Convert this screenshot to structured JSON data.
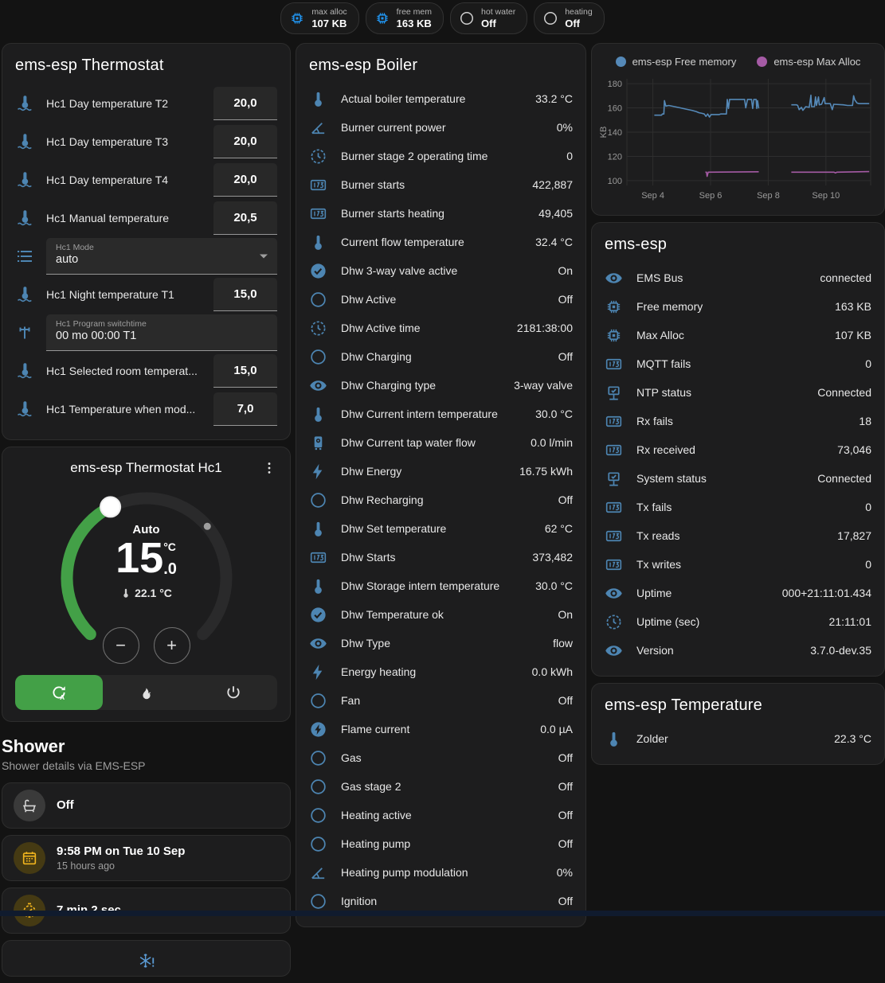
{
  "header": {
    "badges": [
      {
        "label": "max alloc",
        "value": "107 KB",
        "icon": "chip",
        "icon_color": "#2196f3"
      },
      {
        "label": "free mem",
        "value": "163 KB",
        "icon": "chip",
        "icon_color": "#2196f3"
      },
      {
        "label": "hot water",
        "value": "Off",
        "icon": "circle",
        "icon_color": "#d0d0d0"
      },
      {
        "label": "heating",
        "value": "Off",
        "icon": "circle",
        "icon_color": "#d0d0d0"
      }
    ]
  },
  "left": {
    "thermostat": {
      "title": "ems-esp Thermostat",
      "rows": [
        {
          "type": "number",
          "icon": "coolant-thermometer",
          "label": "Hc1 Day temperature T2",
          "value": "20,0"
        },
        {
          "type": "number",
          "icon": "coolant-thermometer",
          "label": "Hc1 Day temperature T3",
          "value": "20,0"
        },
        {
          "type": "number",
          "icon": "coolant-thermometer",
          "label": "Hc1 Day temperature T4",
          "value": "20,0"
        },
        {
          "type": "number",
          "icon": "coolant-thermometer",
          "label": "Hc1 Manual temperature",
          "value": "20,5"
        },
        {
          "type": "select",
          "icon": "list",
          "label": "Hc1 Mode",
          "value": "auto"
        },
        {
          "type": "number",
          "icon": "coolant-thermometer",
          "label": "Hc1 Night temperature T1",
          "value": "15,0"
        },
        {
          "type": "text",
          "icon": "pipe",
          "label": "Hc1 Program switchtime",
          "value": "00 mo 00:00 T1"
        },
        {
          "type": "number",
          "icon": "coolant-thermometer",
          "label": "Hc1 Selected room temperat...",
          "value": "15,0"
        },
        {
          "type": "number",
          "icon": "coolant-thermometer",
          "label": "Hc1 Temperature when mod...",
          "value": "7,0"
        }
      ]
    },
    "dial": {
      "title": "ems-esp Thermostat Hc1",
      "mode_label": "Auto",
      "target_int": "15",
      "target_dec": ".0",
      "target_unit": "°C",
      "target_value": 15.0,
      "current_value": 22.1,
      "current": "22.1 °C",
      "decrease_label": "−",
      "increase_label": "+",
      "accent_green": "#43a047",
      "modes": [
        {
          "icon": "auto",
          "active": true
        },
        {
          "icon": "flame",
          "active": false
        },
        {
          "icon": "power",
          "active": false
        }
      ]
    },
    "shower": {
      "title": "Shower",
      "subtitle": "Shower details via EMS-ESP",
      "cards": [
        {
          "icon": "bathtub",
          "style": "gray",
          "title": "Off",
          "subtitle": ""
        },
        {
          "icon": "calendar",
          "style": "amber",
          "title": "9:58 PM on Tue 10 Sep",
          "subtitle": "15 hours ago"
        },
        {
          "icon": "timer",
          "style": "amber",
          "title": "7 min 2 sec",
          "subtitle": ""
        },
        {
          "icon": "snowflake-alert",
          "style": "center",
          "title": "",
          "subtitle": ""
        }
      ]
    }
  },
  "boiler": {
    "title": "ems-esp Boiler",
    "rows": [
      {
        "icon": "thermometer",
        "label": "Actual boiler temperature",
        "value": "33.2 °C"
      },
      {
        "icon": "angle",
        "label": "Burner current power",
        "value": "0%"
      },
      {
        "icon": "clock",
        "label": "Burner stage 2 operating time",
        "value": "0"
      },
      {
        "icon": "counter",
        "label": "Burner starts",
        "value": "422,887"
      },
      {
        "icon": "counter",
        "label": "Burner starts heating",
        "value": "49,405"
      },
      {
        "icon": "thermometer",
        "label": "Current flow temperature",
        "value": "32.4 °C"
      },
      {
        "icon": "check-circle",
        "label": "Dhw 3-way valve active",
        "value": "On"
      },
      {
        "icon": "circle",
        "label": "Dhw Active",
        "value": "Off"
      },
      {
        "icon": "clock",
        "label": "Dhw Active time",
        "value": "2181:38:00"
      },
      {
        "icon": "circle",
        "label": "Dhw Charging",
        "value": "Off"
      },
      {
        "icon": "eye",
        "label": "Dhw Charging type",
        "value": "3-way valve"
      },
      {
        "icon": "thermometer",
        "label": "Dhw Current intern temperature",
        "value": "30.0 °C"
      },
      {
        "icon": "water-heater",
        "label": "Dhw Current tap water flow",
        "value": "0.0 l/min"
      },
      {
        "icon": "lightning",
        "label": "Dhw Energy",
        "value": "16.75 kWh"
      },
      {
        "icon": "circle",
        "label": "Dhw Recharging",
        "value": "Off"
      },
      {
        "icon": "thermometer",
        "label": "Dhw Set temperature",
        "value": "62 °C"
      },
      {
        "icon": "counter",
        "label": "Dhw Starts",
        "value": "373,482"
      },
      {
        "icon": "thermometer",
        "label": "Dhw Storage intern temperature",
        "value": "30.0 °C"
      },
      {
        "icon": "check-circle",
        "label": "Dhw Temperature ok",
        "value": "On"
      },
      {
        "icon": "eye",
        "label": "Dhw Type",
        "value": "flow"
      },
      {
        "icon": "lightning",
        "label": "Energy heating",
        "value": "0.0 kWh"
      },
      {
        "icon": "circle",
        "label": "Fan",
        "value": "Off"
      },
      {
        "icon": "lightning-circle",
        "label": "Flame current",
        "value": "0.0 µA"
      },
      {
        "icon": "circle",
        "label": "Gas",
        "value": "Off"
      },
      {
        "icon": "circle",
        "label": "Gas stage 2",
        "value": "Off"
      },
      {
        "icon": "circle",
        "label": "Heating active",
        "value": "Off"
      },
      {
        "icon": "circle",
        "label": "Heating pump",
        "value": "Off"
      },
      {
        "icon": "angle",
        "label": "Heating pump modulation",
        "value": "0%"
      },
      {
        "icon": "circle",
        "label": "Ignition",
        "value": "Off"
      }
    ]
  },
  "right": {
    "status": {
      "title": "ems-esp",
      "rows": [
        {
          "icon": "eye",
          "label": "EMS Bus",
          "value": "connected"
        },
        {
          "icon": "chip",
          "label": "Free memory",
          "value": "163 KB"
        },
        {
          "icon": "chip",
          "label": "Max Alloc",
          "value": "107 KB"
        },
        {
          "icon": "counter",
          "label": "MQTT fails",
          "value": "0"
        },
        {
          "icon": "network",
          "label": "NTP status",
          "value": "Connected"
        },
        {
          "icon": "counter",
          "label": "Rx fails",
          "value": "18"
        },
        {
          "icon": "counter",
          "label": "Rx received",
          "value": "73,046"
        },
        {
          "icon": "network",
          "label": "System status",
          "value": "Connected"
        },
        {
          "icon": "counter",
          "label": "Tx fails",
          "value": "0"
        },
        {
          "icon": "counter",
          "label": "Tx reads",
          "value": "17,827"
        },
        {
          "icon": "counter",
          "label": "Tx writes",
          "value": "0"
        },
        {
          "icon": "eye",
          "label": "Uptime",
          "value": "000+21:11:01.434"
        },
        {
          "icon": "clock",
          "label": "Uptime (sec)",
          "value": "21:11:01"
        },
        {
          "icon": "eye",
          "label": "Version",
          "value": "3.7.0-dev.35"
        }
      ]
    },
    "temperature": {
      "title": "ems-esp Temperature",
      "rows": [
        {
          "icon": "thermometer",
          "label": "Zolder",
          "value": "22.3 °C"
        }
      ]
    }
  },
  "chart_data": {
    "type": "line",
    "title": "",
    "ylabel": "KB",
    "ylim": [
      96,
      184
    ],
    "yticks": [
      100,
      120,
      140,
      160,
      180
    ],
    "xlim": [
      3.1,
      11.55
    ],
    "xticks": [
      {
        "x": 4,
        "label": "Sep 4"
      },
      {
        "x": 6,
        "label": "Sep 6"
      },
      {
        "x": 8,
        "label": "Sep 8"
      },
      {
        "x": 10,
        "label": "Sep 10"
      }
    ],
    "grid": true,
    "legend_position": "top",
    "series": [
      {
        "name": "ems-esp Free memory",
        "color": "#5589b8",
        "segments": [
          [
            [
              4.05,
              154
            ],
            [
              4.3,
              154
            ],
            [
              4.33,
              155
            ],
            [
              4.38,
              155
            ],
            [
              4.4,
              166
            ],
            [
              4.45,
              161.5
            ],
            [
              4.55,
              162
            ],
            [
              4.75,
              161
            ],
            [
              4.95,
              160
            ],
            [
              5.15,
              159
            ],
            [
              5.35,
              158
            ],
            [
              5.5,
              157
            ],
            [
              5.6,
              156
            ],
            [
              5.7,
              155.5
            ],
            [
              5.78,
              155
            ],
            [
              5.84,
              153
            ],
            [
              5.9,
              155
            ],
            [
              5.96,
              152.5
            ],
            [
              6.02,
              154.5
            ],
            [
              6.3,
              154.5
            ],
            [
              6.35,
              155
            ],
            [
              6.55,
              155
            ],
            [
              6.58,
              167
            ],
            [
              6.62,
              159.5
            ],
            [
              6.66,
              167
            ],
            [
              7.18,
              167
            ],
            [
              7.22,
              160
            ],
            [
              7.28,
              167
            ],
            [
              7.42,
              167
            ],
            [
              7.46,
              159.5
            ],
            [
              7.5,
              167
            ],
            [
              7.58,
              167
            ],
            [
              7.6,
              159.5
            ],
            [
              7.63,
              166
            ],
            [
              7.67,
              159.5
            ]
          ],
          [
            [
              8.8,
              162.5
            ],
            [
              8.98,
              162.5
            ],
            [
              9.02,
              162
            ],
            [
              9.07,
              158.5
            ],
            [
              9.15,
              160.5
            ],
            [
              9.2,
              158
            ],
            [
              9.3,
              161
            ],
            [
              9.42,
              160.5
            ],
            [
              9.48,
              170.5
            ],
            [
              9.5,
              161
            ],
            [
              9.6,
              161
            ],
            [
              9.64,
              169
            ],
            [
              9.67,
              162
            ],
            [
              9.74,
              169
            ],
            [
              9.77,
              162.5
            ],
            [
              9.85,
              163
            ],
            [
              9.94,
              168.5
            ],
            [
              9.97,
              163.5
            ],
            [
              10.15,
              163.5
            ],
            [
              10.22,
              158.5
            ],
            [
              10.27,
              163
            ],
            [
              10.6,
              162.5
            ],
            [
              10.75,
              162
            ],
            [
              10.92,
              162
            ],
            [
              10.96,
              170
            ],
            [
              11.0,
              166.5
            ],
            [
              11.08,
              164
            ],
            [
              11.15,
              163.5
            ],
            [
              11.5,
              163.5
            ]
          ]
        ]
      },
      {
        "name": "ems-esp Max Alloc",
        "color": "#a55ba5",
        "segments": [
          [
            [
              5.82,
              107
            ],
            [
              5.86,
              107
            ],
            [
              5.88,
              103.5
            ],
            [
              5.92,
              107
            ],
            [
              7.67,
              107.3
            ]
          ],
          [
            [
              8.8,
              107
            ],
            [
              10.28,
              107
            ],
            [
              10.33,
              106.3
            ],
            [
              10.38,
              107
            ],
            [
              11.5,
              107.4
            ]
          ]
        ]
      }
    ]
  }
}
